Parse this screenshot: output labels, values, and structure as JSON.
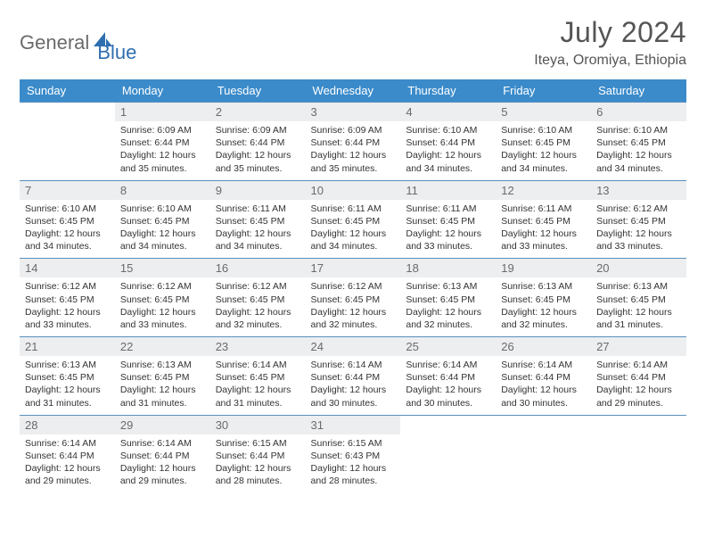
{
  "brand": {
    "part1": "General",
    "part2": "Blue"
  },
  "title": "July 2024",
  "location": "Iteya, Oromiya, Ethiopia",
  "colors": {
    "header_bg": "#3b8bca",
    "header_text": "#ffffff",
    "daynum_bg": "#eceeef",
    "daynum_text": "#6b6b6b",
    "rule": "#5a8fbf",
    "logo_gray": "#6a6a6a",
    "logo_blue": "#2f6fb0",
    "body_text": "#333333",
    "title_text": "#555555"
  },
  "day_names": [
    "Sunday",
    "Monday",
    "Tuesday",
    "Wednesday",
    "Thursday",
    "Friday",
    "Saturday"
  ],
  "weeks": [
    [
      {
        "n": "",
        "sr": "",
        "ss": "",
        "dl": ""
      },
      {
        "n": "1",
        "sr": "Sunrise: 6:09 AM",
        "ss": "Sunset: 6:44 PM",
        "dl": "Daylight: 12 hours and 35 minutes."
      },
      {
        "n": "2",
        "sr": "Sunrise: 6:09 AM",
        "ss": "Sunset: 6:44 PM",
        "dl": "Daylight: 12 hours and 35 minutes."
      },
      {
        "n": "3",
        "sr": "Sunrise: 6:09 AM",
        "ss": "Sunset: 6:44 PM",
        "dl": "Daylight: 12 hours and 35 minutes."
      },
      {
        "n": "4",
        "sr": "Sunrise: 6:10 AM",
        "ss": "Sunset: 6:44 PM",
        "dl": "Daylight: 12 hours and 34 minutes."
      },
      {
        "n": "5",
        "sr": "Sunrise: 6:10 AM",
        "ss": "Sunset: 6:45 PM",
        "dl": "Daylight: 12 hours and 34 minutes."
      },
      {
        "n": "6",
        "sr": "Sunrise: 6:10 AM",
        "ss": "Sunset: 6:45 PM",
        "dl": "Daylight: 12 hours and 34 minutes."
      }
    ],
    [
      {
        "n": "7",
        "sr": "Sunrise: 6:10 AM",
        "ss": "Sunset: 6:45 PM",
        "dl": "Daylight: 12 hours and 34 minutes."
      },
      {
        "n": "8",
        "sr": "Sunrise: 6:10 AM",
        "ss": "Sunset: 6:45 PM",
        "dl": "Daylight: 12 hours and 34 minutes."
      },
      {
        "n": "9",
        "sr": "Sunrise: 6:11 AM",
        "ss": "Sunset: 6:45 PM",
        "dl": "Daylight: 12 hours and 34 minutes."
      },
      {
        "n": "10",
        "sr": "Sunrise: 6:11 AM",
        "ss": "Sunset: 6:45 PM",
        "dl": "Daylight: 12 hours and 34 minutes."
      },
      {
        "n": "11",
        "sr": "Sunrise: 6:11 AM",
        "ss": "Sunset: 6:45 PM",
        "dl": "Daylight: 12 hours and 33 minutes."
      },
      {
        "n": "12",
        "sr": "Sunrise: 6:11 AM",
        "ss": "Sunset: 6:45 PM",
        "dl": "Daylight: 12 hours and 33 minutes."
      },
      {
        "n": "13",
        "sr": "Sunrise: 6:12 AM",
        "ss": "Sunset: 6:45 PM",
        "dl": "Daylight: 12 hours and 33 minutes."
      }
    ],
    [
      {
        "n": "14",
        "sr": "Sunrise: 6:12 AM",
        "ss": "Sunset: 6:45 PM",
        "dl": "Daylight: 12 hours and 33 minutes."
      },
      {
        "n": "15",
        "sr": "Sunrise: 6:12 AM",
        "ss": "Sunset: 6:45 PM",
        "dl": "Daylight: 12 hours and 33 minutes."
      },
      {
        "n": "16",
        "sr": "Sunrise: 6:12 AM",
        "ss": "Sunset: 6:45 PM",
        "dl": "Daylight: 12 hours and 32 minutes."
      },
      {
        "n": "17",
        "sr": "Sunrise: 6:12 AM",
        "ss": "Sunset: 6:45 PM",
        "dl": "Daylight: 12 hours and 32 minutes."
      },
      {
        "n": "18",
        "sr": "Sunrise: 6:13 AM",
        "ss": "Sunset: 6:45 PM",
        "dl": "Daylight: 12 hours and 32 minutes."
      },
      {
        "n": "19",
        "sr": "Sunrise: 6:13 AM",
        "ss": "Sunset: 6:45 PM",
        "dl": "Daylight: 12 hours and 32 minutes."
      },
      {
        "n": "20",
        "sr": "Sunrise: 6:13 AM",
        "ss": "Sunset: 6:45 PM",
        "dl": "Daylight: 12 hours and 31 minutes."
      }
    ],
    [
      {
        "n": "21",
        "sr": "Sunrise: 6:13 AM",
        "ss": "Sunset: 6:45 PM",
        "dl": "Daylight: 12 hours and 31 minutes."
      },
      {
        "n": "22",
        "sr": "Sunrise: 6:13 AM",
        "ss": "Sunset: 6:45 PM",
        "dl": "Daylight: 12 hours and 31 minutes."
      },
      {
        "n": "23",
        "sr": "Sunrise: 6:14 AM",
        "ss": "Sunset: 6:45 PM",
        "dl": "Daylight: 12 hours and 31 minutes."
      },
      {
        "n": "24",
        "sr": "Sunrise: 6:14 AM",
        "ss": "Sunset: 6:44 PM",
        "dl": "Daylight: 12 hours and 30 minutes."
      },
      {
        "n": "25",
        "sr": "Sunrise: 6:14 AM",
        "ss": "Sunset: 6:44 PM",
        "dl": "Daylight: 12 hours and 30 minutes."
      },
      {
        "n": "26",
        "sr": "Sunrise: 6:14 AM",
        "ss": "Sunset: 6:44 PM",
        "dl": "Daylight: 12 hours and 30 minutes."
      },
      {
        "n": "27",
        "sr": "Sunrise: 6:14 AM",
        "ss": "Sunset: 6:44 PM",
        "dl": "Daylight: 12 hours and 29 minutes."
      }
    ],
    [
      {
        "n": "28",
        "sr": "Sunrise: 6:14 AM",
        "ss": "Sunset: 6:44 PM",
        "dl": "Daylight: 12 hours and 29 minutes."
      },
      {
        "n": "29",
        "sr": "Sunrise: 6:14 AM",
        "ss": "Sunset: 6:44 PM",
        "dl": "Daylight: 12 hours and 29 minutes."
      },
      {
        "n": "30",
        "sr": "Sunrise: 6:15 AM",
        "ss": "Sunset: 6:44 PM",
        "dl": "Daylight: 12 hours and 28 minutes."
      },
      {
        "n": "31",
        "sr": "Sunrise: 6:15 AM",
        "ss": "Sunset: 6:43 PM",
        "dl": "Daylight: 12 hours and 28 minutes."
      },
      {
        "n": "",
        "sr": "",
        "ss": "",
        "dl": ""
      },
      {
        "n": "",
        "sr": "",
        "ss": "",
        "dl": ""
      },
      {
        "n": "",
        "sr": "",
        "ss": "",
        "dl": ""
      }
    ]
  ]
}
